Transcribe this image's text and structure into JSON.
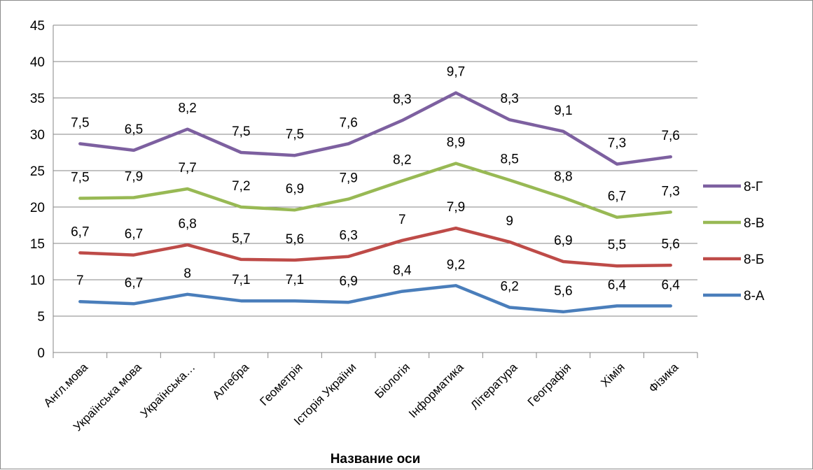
{
  "chart_data": {
    "type": "line",
    "categories": [
      "Англ.мова",
      "Українська мова",
      "Українська…",
      "Алгебра",
      "Геометрія",
      "Історія України",
      "Біологія",
      "Інформатика",
      "Література",
      "Географія",
      "Хімія",
      "Фізика"
    ],
    "xlabel": "Название оси",
    "ylabel": "",
    "ylim": [
      0,
      45
    ],
    "yticks": [
      0,
      5,
      10,
      15,
      20,
      25,
      30,
      35,
      40,
      45
    ],
    "grid": true,
    "stacked": true,
    "legend_position": "right",
    "series": [
      {
        "name": "8-А",
        "color": "#4a7ebb",
        "values": [
          7,
          6.7,
          8,
          7.1,
          7.1,
          6.9,
          8.4,
          9.2,
          6.2,
          5.6,
          6.4,
          6.4
        ],
        "labels": [
          "7",
          "6,7",
          "8",
          "7,1",
          "7,1",
          "6,9",
          "8,4",
          "9,2",
          "6,2",
          "5,6",
          "6,4",
          "6,4"
        ]
      },
      {
        "name": "8-Б",
        "color": "#be4b48",
        "values": [
          6.7,
          6.7,
          6.8,
          5.7,
          5.6,
          6.3,
          7,
          7.9,
          9,
          6.9,
          5.5,
          5.6
        ],
        "labels": [
          "6,7",
          "6,7",
          "6,8",
          "5,7",
          "5,6",
          "6,3",
          "7",
          "7,9",
          "9",
          "6,9",
          "5,5",
          "5,6"
        ]
      },
      {
        "name": "8-В",
        "color": "#98b954",
        "values": [
          7.5,
          7.9,
          7.7,
          7.2,
          6.9,
          7.9,
          8.2,
          8.9,
          8.5,
          8.8,
          6.7,
          7.3
        ],
        "labels": [
          "7,5",
          "7,9",
          "7,7",
          "7,2",
          "6,9",
          "7,9",
          "8,2",
          "8,9",
          "8,5",
          "8,8",
          "6,7",
          "7,3"
        ]
      },
      {
        "name": "8-Г",
        "color": "#7d60a0",
        "values": [
          7.5,
          6.5,
          8.2,
          7.5,
          7.5,
          7.6,
          8.3,
          9.7,
          8.3,
          9.1,
          7.3,
          7.6
        ],
        "labels": [
          "7,5",
          "6,5",
          "8,2",
          "7,5",
          "7,5",
          "7,6",
          "8,3",
          "9,7",
          "8,3",
          "9,1",
          "7,3",
          "7,6"
        ]
      }
    ]
  }
}
